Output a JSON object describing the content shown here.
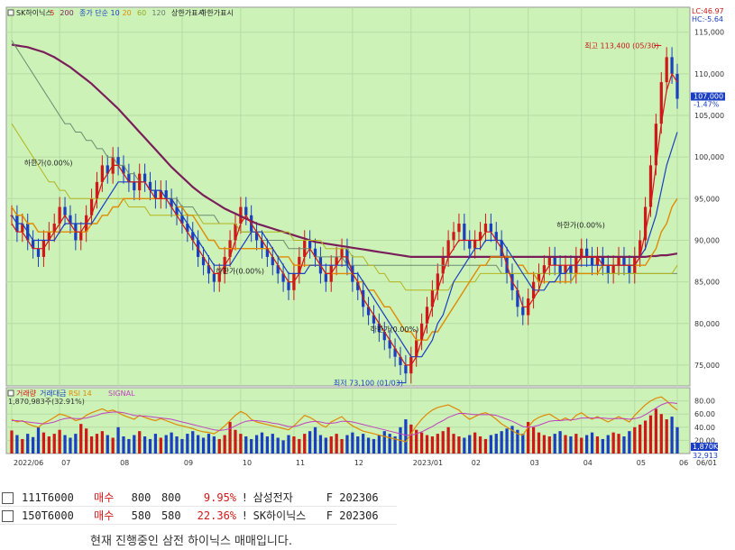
{
  "chart_data": {
    "type": "candlestick",
    "ticker_title": "SK하이닉스",
    "legend_top": [
      {
        "label": "SK하이닉스",
        "color": "#222222"
      },
      {
        "label": "5",
        "color": "#d01818"
      },
      {
        "label": "200",
        "color": "#7a1e5a"
      },
      {
        "label": "종가 단순 10",
        "color": "#1a3fc2"
      },
      {
        "label": "20",
        "color": "#e08a00"
      },
      {
        "label": "60",
        "color": "#9aa81c"
      },
      {
        "label": "120",
        "color": "#6a7a6a"
      },
      {
        "label": "상한가표시",
        "color": "#222222"
      },
      {
        "label": "하한가표시",
        "color": "#222222"
      }
    ],
    "top_right_info": [
      "LC:46.97",
      "HC:-5.64"
    ],
    "y_ticks": [
      "115,000",
      "110,000",
      "105,000",
      "100,000",
      "95,000",
      "90,000",
      "85,000",
      "80,000",
      "75,000"
    ],
    "y_tick_values": [
      115000,
      110000,
      105000,
      100000,
      95000,
      90000,
      85000,
      80000,
      75000
    ],
    "ylim": [
      72500,
      118000
    ],
    "current_price_label": "107,000",
    "current_change_label": "-1.47%",
    "x_ticks": [
      "2022/06",
      "07",
      "08",
      "09",
      "10",
      "11",
      "12",
      "2023/01",
      "02",
      "03",
      "04",
      "05",
      "06",
      "06/01"
    ],
    "annotations": [
      {
        "text": "최고 113,400 (05/30)",
        "color": "#c81818"
      },
      {
        "text": "최저 73,100 (01/03)",
        "color": "#1a3fc2"
      },
      {
        "text": "하한가(0.00%)",
        "color": "#222222"
      },
      {
        "text": "하한가(0.00%)",
        "color": "#222222"
      },
      {
        "text": "하한가(0.00%)",
        "color": "#222222"
      },
      {
        "text": "하한가(0.00%)",
        "color": "#222222"
      }
    ],
    "price_series": {
      "close": [
        93,
        91,
        92,
        90,
        89,
        88,
        90,
        91,
        92,
        94,
        93,
        92,
        90,
        91,
        93,
        95,
        97,
        99,
        98,
        100,
        99,
        98,
        97,
        96,
        98,
        97,
        96,
        95,
        96,
        95,
        94,
        93,
        92,
        91,
        90,
        88,
        87,
        86,
        85,
        86,
        88,
        90,
        92,
        94,
        93,
        91,
        90,
        89,
        88,
        87,
        86,
        85,
        84,
        86,
        88,
        90,
        89,
        88,
        86,
        85,
        87,
        88,
        89,
        87,
        85,
        84,
        82,
        81,
        80,
        79,
        78,
        77,
        76,
        75,
        74,
        76,
        78,
        80,
        82,
        84,
        86,
        88,
        90,
        91,
        92,
        90,
        89,
        90,
        91,
        92,
        91,
        90,
        88,
        86,
        84,
        82,
        81,
        83,
        85,
        86,
        87,
        88,
        87,
        86,
        87,
        86,
        88,
        89,
        88,
        87,
        88,
        87,
        86,
        87,
        88,
        87,
        86,
        88,
        90,
        94,
        99,
        104,
        109,
        112,
        110,
        107
      ],
      "ma5": [
        92,
        91,
        91,
        90,
        89,
        89,
        89,
        90,
        91,
        92,
        93,
        92,
        91,
        91,
        92,
        93,
        95,
        97,
        98,
        99,
        99,
        98,
        97,
        97,
        97,
        97,
        96,
        95,
        95,
        95,
        94,
        93,
        92,
        91,
        90,
        89,
        88,
        87,
        86,
        86,
        87,
        88,
        90,
        92,
        93,
        92,
        91,
        90,
        89,
        88,
        87,
        86,
        85,
        85,
        86,
        88,
        89,
        88,
        87,
        86,
        86,
        87,
        88,
        88,
        86,
        85,
        83,
        82,
        81,
        80,
        79,
        78,
        77,
        76,
        75,
        75,
        76,
        78,
        80,
        82,
        84,
        86,
        88,
        89,
        90,
        90,
        90,
        90,
        90,
        91,
        91,
        90,
        89,
        87,
        85,
        84,
        82,
        82,
        83,
        84,
        86,
        87,
        87,
        87,
        87,
        87,
        87,
        88,
        88,
        88,
        88,
        87,
        87,
        87,
        87,
        87,
        87,
        87,
        88,
        91,
        94,
        99,
        104,
        108,
        110,
        109
      ],
      "ma10": [
        93,
        92,
        92,
        91,
        90,
        90,
        90,
        90,
        90,
        91,
        92,
        92,
        92,
        92,
        92,
        92,
        93,
        94,
        95,
        96,
        97,
        97,
        97,
        97,
        97,
        97,
        96,
        96,
        96,
        95,
        95,
        94,
        93,
        92,
        91,
        90,
        89,
        88,
        87,
        87,
        87,
        87,
        88,
        89,
        90,
        91,
        91,
        91,
        90,
        89,
        88,
        87,
        86,
        86,
        86,
        86,
        87,
        87,
        87,
        87,
        87,
        87,
        87,
        87,
        86,
        86,
        85,
        84,
        83,
        82,
        81,
        80,
        79,
        78,
        77,
        76,
        76,
        76,
        77,
        78,
        80,
        81,
        83,
        85,
        86,
        87,
        88,
        89,
        89,
        90,
        90,
        90,
        90,
        89,
        88,
        87,
        86,
        85,
        84,
        84,
        84,
        85,
        85,
        86,
        86,
        87,
        87,
        87,
        87,
        87,
        87,
        87,
        87,
        87,
        87,
        87,
        87,
        87,
        88,
        89,
        91,
        93,
        96,
        99,
        101,
        103
      ],
      "ma20": [
        94,
        93,
        93,
        92,
        92,
        91,
        91,
        91,
        91,
        91,
        91,
        91,
        91,
        91,
        91,
        92,
        92,
        93,
        93,
        94,
        94,
        95,
        95,
        95,
        95,
        95,
        95,
        95,
        95,
        95,
        95,
        94,
        94,
        93,
        93,
        92,
        91,
        90,
        90,
        89,
        89,
        89,
        89,
        89,
        89,
        89,
        89,
        89,
        89,
        89,
        88,
        88,
        88,
        87,
        87,
        87,
        87,
        87,
        87,
        86,
        86,
        86,
        86,
        86,
        86,
        85,
        85,
        84,
        84,
        83,
        82,
        82,
        81,
        80,
        79,
        79,
        78,
        78,
        78,
        79,
        79,
        80,
        81,
        82,
        83,
        84,
        85,
        86,
        87,
        87,
        88,
        88,
        88,
        88,
        88,
        87,
        87,
        86,
        86,
        85,
        85,
        85,
        85,
        85,
        85,
        85,
        86,
        86,
        86,
        86,
        86,
        87,
        87,
        87,
        87,
        87,
        87,
        87,
        87,
        87,
        88,
        89,
        91,
        92,
        94,
        95
      ],
      "ma60": [
        104,
        103,
        102,
        101,
        100,
        99,
        98,
        97,
        97,
        96,
        96,
        95,
        95,
        95,
        95,
        95,
        95,
        95,
        95,
        95,
        95,
        95,
        94,
        94,
        94,
        94,
        93,
        93,
        93,
        93,
        93,
        93,
        93,
        93,
        93,
        93,
        92,
        92,
        92,
        92,
        92,
        92,
        92,
        91,
        91,
        91,
        91,
        91,
        91,
        91,
        91,
        91,
        91,
        90,
        90,
        90,
        90,
        90,
        90,
        89,
        89,
        89,
        89,
        89,
        88,
        88,
        88,
        87,
        87,
        86,
        86,
        85,
        85,
        85,
        84,
        84,
        84,
        84,
        84,
        84,
        84,
        84,
        84,
        85,
        85,
        85,
        85,
        85,
        86,
        86,
        86,
        86,
        86,
        86,
        86,
        86,
        86,
        86,
        86,
        86,
        86,
        86,
        86,
        86,
        86,
        86,
        86,
        86,
        86,
        86,
        86,
        86,
        86,
        86,
        86,
        86,
        86,
        86,
        86,
        86,
        86,
        86,
        86,
        86,
        86,
        87
      ],
      "ma120": [
        114,
        113,
        112,
        111,
        110,
        109,
        108,
        107,
        106,
        105,
        104,
        104,
        103,
        103,
        102,
        102,
        101,
        101,
        100,
        100,
        99,
        99,
        98,
        98,
        97,
        97,
        96,
        96,
        96,
        95,
        95,
        95,
        94,
        94,
        94,
        93,
        93,
        93,
        93,
        92,
        92,
        92,
        92,
        91,
        91,
        91,
        91,
        90,
        90,
        90,
        90,
        90,
        89,
        89,
        89,
        89,
        89,
        88,
        88,
        88,
        88,
        88,
        88,
        87,
        87,
        87,
        87,
        87,
        87,
        87,
        87,
        87,
        87,
        87,
        87,
        87,
        87,
        87,
        87,
        87,
        87,
        87,
        87,
        87,
        87,
        87,
        87,
        87,
        87,
        87,
        87,
        87,
        86,
        86,
        86,
        86,
        86,
        86,
        86,
        86,
        86,
        86,
        86,
        86,
        86,
        86,
        86,
        86,
        86,
        86,
        86,
        86,
        86,
        86,
        86,
        86,
        86,
        86,
        86,
        86,
        86,
        86,
        86,
        86,
        86,
        86
      ],
      "ma200": [
        113.5,
        113.4,
        113.3,
        113.2,
        113.0,
        112.8,
        112.6,
        112.3,
        112.0,
        111.6,
        111.2,
        110.8,
        110.3,
        109.8,
        109.3,
        108.8,
        108.2,
        107.6,
        107.0,
        106.4,
        105.8,
        105.1,
        104.4,
        103.7,
        103.0,
        102.3,
        101.6,
        100.9,
        100.2,
        99.5,
        98.8,
        98.2,
        97.6,
        97.0,
        96.4,
        95.9,
        95.4,
        95.0,
        94.6,
        94.2,
        93.8,
        93.5,
        93.2,
        92.9,
        92.6,
        92.3,
        92.0,
        91.8,
        91.6,
        91.4,
        91.2,
        91.0,
        90.8,
        90.6,
        90.4,
        90.2,
        90.0,
        89.8,
        89.7,
        89.6,
        89.5,
        89.4,
        89.3,
        89.2,
        89.1,
        89.0,
        88.9,
        88.8,
        88.7,
        88.6,
        88.5,
        88.4,
        88.3,
        88.2,
        88.1,
        88.0,
        88.0,
        88.0,
        88.0,
        88.0,
        88.0,
        88.0,
        88.0,
        88.0,
        88.0,
        88.0,
        88.0,
        88.0,
        88.0,
        88.0,
        88.0,
        88.0,
        88.0,
        88.0,
        88.0,
        88.0,
        88.0,
        88.0,
        88.0,
        88.0,
        88.0,
        88.0,
        88.0,
        88.0,
        88.0,
        88.0,
        88.0,
        88.0,
        88.0,
        88.0,
        88.0,
        88.0,
        88.0,
        88.0,
        88.0,
        88.0,
        88.0,
        88.0,
        88.0,
        88.0,
        88.1,
        88.1,
        88.2,
        88.2,
        88.3,
        88.4
      ]
    },
    "indicator_legend": [
      {
        "label": "거래량",
        "color": "#d01818"
      },
      {
        "label": "거래대금",
        "color": "#1a3fc2"
      },
      {
        "label": "RSI 14",
        "color": "#e08a00"
      },
      {
        "label": "SIGNAL",
        "color": "#c040c0"
      }
    ],
    "indicator_sub_label": "1,870,983주(32.91%)",
    "indicator_y_ticks": [
      "80.00",
      "60.00",
      "40.00",
      "20.00"
    ],
    "indicator_y_values": [
      80,
      60,
      40,
      20
    ],
    "indicator_side_labels": [
      "1,870K",
      "32,913"
    ],
    "rsi": [
      52,
      48,
      50,
      45,
      42,
      40,
      46,
      50,
      55,
      60,
      58,
      55,
      50,
      52,
      58,
      62,
      65,
      68,
      64,
      66,
      62,
      58,
      55,
      52,
      58,
      55,
      52,
      50,
      53,
      50,
      47,
      44,
      42,
      40,
      38,
      35,
      33,
      32,
      30,
      35,
      42,
      50,
      58,
      64,
      60,
      52,
      48,
      46,
      44,
      42,
      40,
      38,
      36,
      42,
      50,
      58,
      55,
      50,
      44,
      40,
      48,
      52,
      56,
      48,
      42,
      38,
      34,
      32,
      30,
      28,
      26,
      24,
      22,
      20,
      18,
      30,
      42,
      52,
      60,
      66,
      70,
      72,
      74,
      70,
      66,
      58,
      52,
      56,
      60,
      62,
      58,
      52,
      45,
      40,
      35,
      30,
      28,
      40,
      50,
      55,
      58,
      60,
      55,
      50,
      54,
      50,
      58,
      62,
      56,
      52,
      56,
      52,
      48,
      52,
      56,
      52,
      48,
      58,
      66,
      74,
      80,
      84,
      86,
      80,
      72,
      66
    ],
    "signal": [
      50,
      50,
      49,
      48,
      47,
      46,
      45,
      46,
      48,
      51,
      53,
      54,
      53,
      53,
      54,
      56,
      58,
      61,
      62,
      63,
      63,
      62,
      60,
      58,
      57,
      57,
      56,
      55,
      54,
      53,
      52,
      50,
      48,
      46,
      44,
      42,
      40,
      38,
      36,
      35,
      36,
      38,
      42,
      46,
      49,
      50,
      50,
      49,
      48,
      46,
      45,
      43,
      41,
      41,
      43,
      46,
      48,
      49,
      48,
      46,
      46,
      47,
      49,
      49,
      48,
      46,
      44,
      42,
      40,
      38,
      36,
      34,
      32,
      30,
      28,
      28,
      30,
      33,
      37,
      41,
      46,
      50,
      55,
      58,
      61,
      61,
      60,
      59,
      59,
      59,
      59,
      58,
      55,
      52,
      49,
      45,
      41,
      40,
      41,
      43,
      46,
      49,
      50,
      50,
      51,
      51,
      52,
      54,
      54,
      54,
      54,
      54,
      53,
      53,
      53,
      53,
      52,
      53,
      55,
      59,
      64,
      69,
      74,
      77,
      77,
      76
    ],
    "volume": [
      35,
      28,
      22,
      30,
      25,
      40,
      32,
      26,
      30,
      36,
      28,
      24,
      30,
      45,
      38,
      26,
      30,
      34,
      28,
      24,
      40,
      26,
      22,
      28,
      34,
      26,
      22,
      30,
      24,
      28,
      32,
      26,
      22,
      30,
      34,
      28,
      24,
      30,
      26,
      22,
      28,
      48,
      36,
      30,
      26,
      22,
      28,
      32,
      26,
      30,
      24,
      20,
      28,
      26,
      22,
      30,
      34,
      40,
      28,
      24,
      26,
      30,
      22,
      28,
      32,
      26,
      30,
      24,
      22,
      28,
      34,
      30,
      26,
      40,
      52,
      44,
      36,
      32,
      28,
      26,
      30,
      34,
      40,
      30,
      26,
      24,
      28,
      32,
      26,
      22,
      28,
      30,
      34,
      38,
      42,
      36,
      30,
      48,
      40,
      32,
      28,
      26,
      30,
      34,
      28,
      26,
      30,
      24,
      28,
      32,
      26,
      22,
      28,
      32,
      30,
      26,
      34,
      40,
      44,
      50,
      58,
      68,
      60,
      52,
      56,
      40
    ]
  },
  "trades": [
    {
      "code": "111T6000",
      "side": "매수",
      "qty": "800",
      "qty2": "800",
      "pct": "9.95%",
      "mark": "!",
      "name": "삼성전자",
      "contract": "F 202306"
    },
    {
      "code": "150T6000",
      "side": "매수",
      "qty": "580",
      "qty2": "580",
      "pct": "22.36%",
      "mark": "!",
      "name": "SK하이닉스",
      "contract": "F 202306"
    }
  ],
  "footer": {
    "message": "현재 진행중인 삼전 하이닉스 매매입니다."
  },
  "colors": {
    "plot_bg": "#ccf2b8",
    "axis_bg": "#ffffff",
    "candle_up": "#d01818",
    "candle_down": "#1a3fc2",
    "ma5": "#d01818",
    "ma10": "#1a3fc2",
    "ma20": "#e08a00",
    "ma60": "#b4b41c",
    "ma120": "#6f8a6f",
    "ma200": "#7a1e5a",
    "rsi": "#e08a00",
    "signal": "#c040c0"
  }
}
